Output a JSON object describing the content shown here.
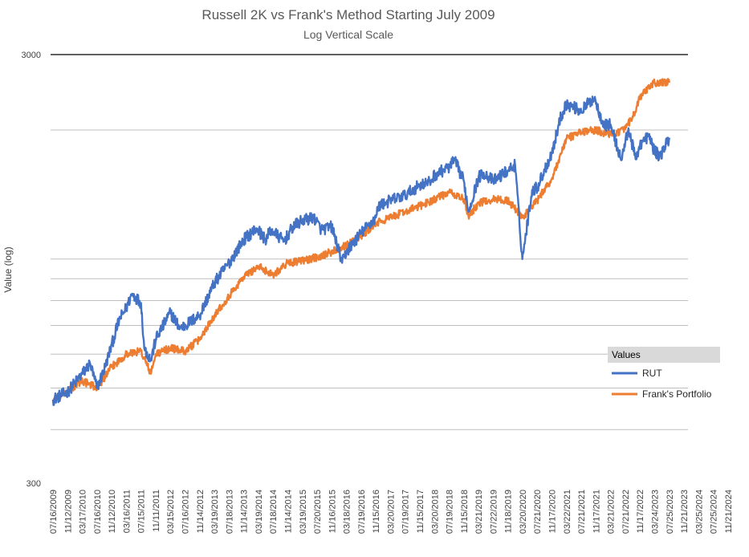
{
  "chart_data": {
    "type": "line",
    "title": "Russell 2K vs Frank's Method Starting July 2009",
    "subtitle": "Log Vertical Scale",
    "ylabel": "Value (log)",
    "xlabel": "",
    "yscale": "log",
    "ylim": [
      300,
      3000
    ],
    "ytick_labels": [
      "3000",
      "300"
    ],
    "grid": "horizontal",
    "legend_title": "Values",
    "legend_position": "right",
    "x_tick_labels": [
      "07/16/2009",
      "11/12/2009",
      "03/17/2010",
      "07/16/2010",
      "11/12/2010",
      "03/16/2011",
      "07/15/2011",
      "11/11/2011",
      "03/15/2012",
      "07/16/2012",
      "11/14/2012",
      "03/19/2013",
      "07/18/2013",
      "11/14/2013",
      "03/19/2014",
      "07/18/2014",
      "11/14/2014",
      "03/19/2015",
      "07/20/2015",
      "11/16/2015",
      "03/18/2016",
      "07/19/2016",
      "11/15/2016",
      "03/20/2017",
      "07/19/2017",
      "11/15/2017",
      "03/20/2018",
      "07/19/2018",
      "11/15/2018",
      "03/21/2019",
      "07/22/2019",
      "11/18/2019",
      "03/20/2020",
      "07/21/2020",
      "11/17/2020",
      "03/22/2021",
      "07/21/2021",
      "11/17/2021",
      "03/21/2022",
      "07/21/2022",
      "11/17/2022",
      "03/24/2023",
      "07/25/2023",
      "11/21/2023",
      "03/25/2024",
      "07/25/2024",
      "11/21/2024"
    ],
    "x_tick_dates": [
      "2009-07-16",
      "2009-11-12",
      "2010-03-17",
      "2010-07-16",
      "2010-11-12",
      "2011-03-16",
      "2011-07-15",
      "2011-11-11",
      "2012-03-15",
      "2012-07-16",
      "2012-11-14",
      "2013-03-19",
      "2013-07-18",
      "2013-11-14",
      "2014-03-19",
      "2014-07-18",
      "2014-11-14",
      "2015-03-19",
      "2015-07-20",
      "2015-11-16",
      "2016-03-18",
      "2016-07-19",
      "2016-11-15",
      "2017-03-20",
      "2017-07-19",
      "2017-11-15",
      "2018-03-20",
      "2018-07-19",
      "2018-11-15",
      "2019-03-21",
      "2019-07-22",
      "2019-11-18",
      "2020-03-20",
      "2020-07-21",
      "2020-11-17",
      "2021-03-22",
      "2021-07-21",
      "2021-11-17",
      "2022-03-21",
      "2022-07-21",
      "2022-11-17",
      "2023-03-24",
      "2023-07-25",
      "2023-11-21",
      "2024-03-25",
      "2024-07-25",
      "2024-11-21"
    ],
    "series": [
      {
        "name": "RUT",
        "color": "#4472c4",
        "x": [
          "2009-07-16",
          "2009-11-12",
          "2010-03-17",
          "2010-05-20",
          "2010-07-16",
          "2010-09-20",
          "2010-11-12",
          "2011-01-14",
          "2011-03-16",
          "2011-05-02",
          "2011-07-15",
          "2011-08-10",
          "2011-10-03",
          "2011-11-11",
          "2012-03-15",
          "2012-06-04",
          "2012-07-16",
          "2012-11-14",
          "2013-03-19",
          "2013-07-18",
          "2013-11-14",
          "2014-03-04",
          "2014-05-15",
          "2014-07-03",
          "2014-10-13",
          "2014-12-29",
          "2015-03-19",
          "2015-06-23",
          "2015-08-25",
          "2015-11-16",
          "2016-02-11",
          "2016-03-18",
          "2016-07-19",
          "2016-11-15",
          "2016-12-09",
          "2017-03-20",
          "2017-07-19",
          "2017-11-15",
          "2018-02-08",
          "2018-03-20",
          "2018-07-19",
          "2018-08-31",
          "2018-11-15",
          "2018-12-24",
          "2019-03-21",
          "2019-05-03",
          "2019-07-22",
          "2019-11-18",
          "2020-01-17",
          "2020-03-18",
          "2020-06-08",
          "2020-07-21",
          "2020-11-17",
          "2021-01-26",
          "2021-03-15",
          "2021-07-21",
          "2021-11-08",
          "2021-11-17",
          "2022-01-27",
          "2022-03-21",
          "2022-06-16",
          "2022-07-21",
          "2022-08-16",
          "2022-10-12",
          "2022-11-17",
          "2023-02-02",
          "2023-03-24",
          "2023-05-11",
          "2023-07-25"
        ],
        "y": [
          470,
          490,
          540,
          570,
          500,
          560,
          630,
          720,
          770,
          830,
          790,
          620,
          580,
          650,
          750,
          690,
          700,
          740,
          880,
          980,
          1110,
          1180,
          1110,
          1170,
          1100,
          1190,
          1230,
          1250,
          1170,
          1190,
          980,
          1040,
          1150,
          1250,
          1330,
          1370,
          1410,
          1490,
          1510,
          1570,
          1640,
          1700,
          1520,
          1290,
          1550,
          1590,
          1520,
          1610,
          1660,
          1000,
          1450,
          1470,
          1770,
          2120,
          2300,
          2220,
          2390,
          2300,
          2050,
          2060,
          1700,
          1870,
          2020,
          1710,
          1850,
          1940,
          1780,
          1740,
          1920
        ]
      },
      {
        "name": "Frank's Portfolio",
        "color": "#ed7d31",
        "x": [
          "2009-07-16",
          "2009-11-12",
          "2010-03-17",
          "2010-07-16",
          "2010-11-12",
          "2011-03-16",
          "2011-07-15",
          "2011-10-03",
          "2011-11-11",
          "2012-03-15",
          "2012-07-16",
          "2012-11-14",
          "2013-03-19",
          "2013-07-18",
          "2013-11-14",
          "2014-03-19",
          "2014-07-18",
          "2014-11-14",
          "2015-03-19",
          "2015-07-20",
          "2015-11-16",
          "2016-03-18",
          "2016-07-19",
          "2016-11-15",
          "2017-03-20",
          "2017-07-19",
          "2017-11-15",
          "2018-03-20",
          "2018-07-19",
          "2018-11-15",
          "2018-12-24",
          "2019-03-21",
          "2019-07-22",
          "2019-11-18",
          "2020-03-20",
          "2020-07-21",
          "2020-11-17",
          "2021-03-22",
          "2021-07-21",
          "2021-11-17",
          "2022-03-21",
          "2022-07-21",
          "2022-10-12",
          "2022-11-17",
          "2023-03-24",
          "2023-07-25"
        ],
        "y": [
          470,
          490,
          520,
          500,
          560,
          600,
          610,
          540,
          600,
          620,
          610,
          650,
          740,
          820,
          910,
          960,
          920,
          980,
          990,
          1010,
          1040,
          1080,
          1130,
          1210,
          1250,
          1290,
          1330,
          1380,
          1430,
          1380,
          1260,
          1350,
          1380,
          1370,
          1250,
          1370,
          1540,
          1910,
          1980,
          2000,
          1950,
          2010,
          2200,
          2390,
          2580,
          2580
        ]
      }
    ]
  }
}
